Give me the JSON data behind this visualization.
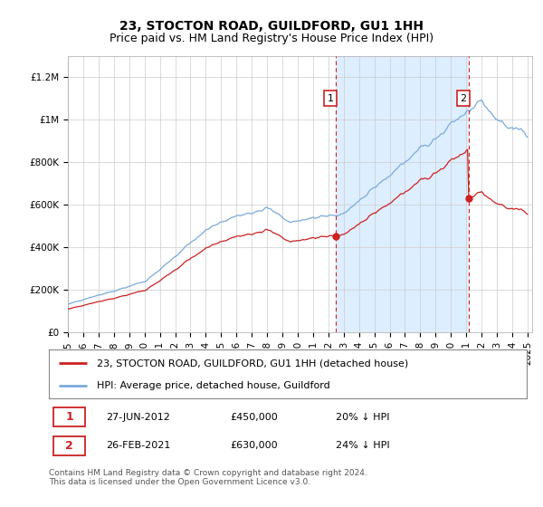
{
  "title": "23, STOCTON ROAD, GUILDFORD, GU1 1HH",
  "subtitle": "Price paid vs. HM Land Registry's House Price Index (HPI)",
  "legend_line1": "23, STOCTON ROAD, GUILDFORD, GU1 1HH (detached house)",
  "legend_line2": "HPI: Average price, detached house, Guildford",
  "annotation1_date": "27-JUN-2012",
  "annotation1_price": "£450,000",
  "annotation1_hpi": "20% ↓ HPI",
  "annotation2_date": "26-FEB-2021",
  "annotation2_price": "£630,000",
  "annotation2_hpi": "24% ↓ HPI",
  "footer": "Contains HM Land Registry data © Crown copyright and database right 2024.\nThis data is licensed under the Open Government Licence v3.0.",
  "background_color": "#ffffff",
  "plot_bg_color": "#ffffff",
  "shade_color": "#ddeeff",
  "hpi_color": "#7aaadd",
  "price_color": "#cc2222",
  "vline_color": "#cc2222",
  "grid_color": "#cccccc",
  "ylim": [
    0,
    1300000
  ],
  "yticks": [
    0,
    200000,
    400000,
    600000,
    800000,
    1000000,
    1200000
  ],
  "ytick_labels": [
    "£0",
    "£200K",
    "£400K",
    "£600K",
    "£800K",
    "£1M",
    "£1.2M"
  ],
  "xstart_year": 1995,
  "xend_year": 2025,
  "sale1_year": 2012.5,
  "sale2_year": 2021.15,
  "sale1_price": 450000,
  "sale2_price": 630000,
  "title_fontsize": 10,
  "subtitle_fontsize": 9,
  "tick_fontsize": 7.5,
  "legend_fontsize": 8,
  "annotation_fontsize": 8,
  "footer_fontsize": 6.5
}
